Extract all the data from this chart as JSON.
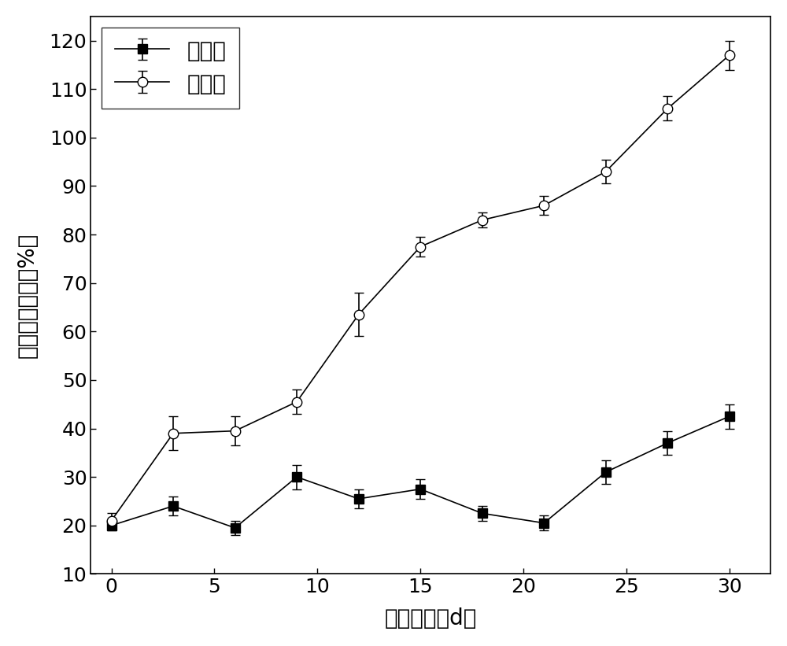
{
  "x": [
    0,
    3,
    6,
    9,
    12,
    15,
    18,
    21,
    24,
    27,
    30
  ],
  "control_y": [
    20,
    24,
    19.5,
    30,
    25.5,
    27.5,
    22.5,
    20.5,
    31,
    37,
    42.5
  ],
  "control_err": [
    1.0,
    2.0,
    1.5,
    2.5,
    2.0,
    2.0,
    1.5,
    1.5,
    2.5,
    2.5,
    2.5
  ],
  "exp_y": [
    21,
    39,
    39.5,
    45.5,
    63.5,
    77.5,
    83,
    86,
    93,
    106,
    117
  ],
  "exp_err": [
    1.5,
    3.5,
    3.0,
    2.5,
    4.5,
    2.0,
    1.5,
    2.0,
    2.5,
    2.5,
    3.0
  ],
  "xlabel": "堆肥时间（d）",
  "ylabel": "种子发芽指数（%）",
  "ylim": [
    10,
    125
  ],
  "yticks": [
    10,
    20,
    30,
    40,
    50,
    60,
    70,
    80,
    90,
    100,
    110,
    120
  ],
  "xlim": [
    -1,
    32
  ],
  "xticks": [
    0,
    5,
    10,
    15,
    20,
    25,
    30
  ],
  "legend_control": "对照组",
  "legend_exp": "实验组",
  "line_color": "#000000",
  "background_color": "#ffffff",
  "fontsize_labels": 20,
  "fontsize_ticks": 18,
  "fontsize_legend": 20
}
